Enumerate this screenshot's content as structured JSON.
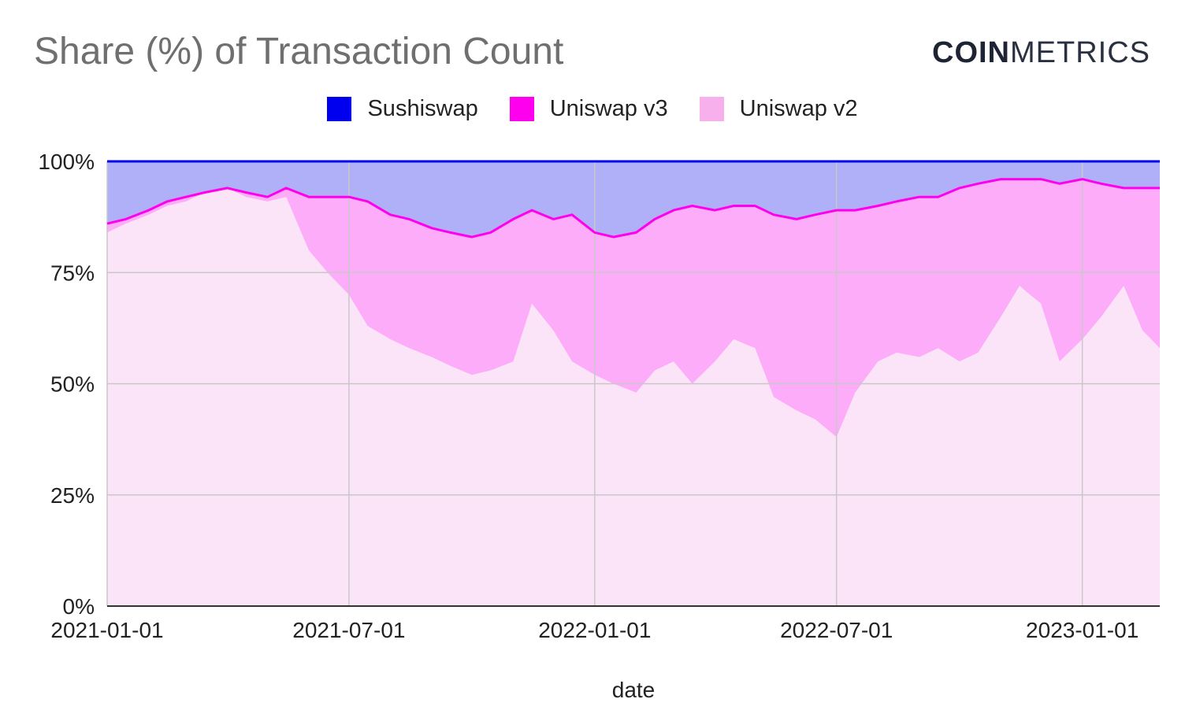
{
  "header": {
    "title": "Share (%) of Transaction Count",
    "logo_bold": "COIN",
    "logo_light": "METRICS"
  },
  "chart_data": {
    "type": "area",
    "stacked": true,
    "percent": true,
    "title": "Share (%) of Transaction Count",
    "xlabel": "date",
    "ylabel": "",
    "ylim": [
      0,
      100
    ],
    "xlim": [
      "2021-01-01",
      "2023-02-28"
    ],
    "x_ticks": [
      "2021-01-01",
      "2021-07-01",
      "2022-01-01",
      "2022-07-01",
      "2023-01-01"
    ],
    "y_ticks": [
      "0%",
      "25%",
      "50%",
      "75%",
      "100%"
    ],
    "grid": true,
    "legend_position": "top-center",
    "x": [
      "2021-01-01",
      "2021-01-15",
      "2021-02-01",
      "2021-02-15",
      "2021-03-01",
      "2021-03-15",
      "2021-04-01",
      "2021-04-15",
      "2021-05-01",
      "2021-05-15",
      "2021-06-01",
      "2021-06-15",
      "2021-07-01",
      "2021-07-15",
      "2021-08-01",
      "2021-08-15",
      "2021-09-01",
      "2021-09-15",
      "2021-10-01",
      "2021-10-15",
      "2021-11-01",
      "2021-11-15",
      "2021-12-01",
      "2021-12-15",
      "2022-01-01",
      "2022-01-15",
      "2022-02-01",
      "2022-02-15",
      "2022-03-01",
      "2022-03-15",
      "2022-04-01",
      "2022-04-15",
      "2022-05-01",
      "2022-05-15",
      "2022-06-01",
      "2022-06-15",
      "2022-07-01",
      "2022-07-15",
      "2022-08-01",
      "2022-08-15",
      "2022-09-01",
      "2022-09-15",
      "2022-10-01",
      "2022-10-15",
      "2022-11-01",
      "2022-11-15",
      "2022-12-01",
      "2022-12-15",
      "2023-01-01",
      "2023-01-15",
      "2023-02-01",
      "2023-02-15",
      "2023-02-28"
    ],
    "series": [
      {
        "name": "Uniswap v2",
        "color": "#fce4f8",
        "values": [
          84,
          86,
          88,
          90,
          91,
          93,
          94,
          92,
          91,
          92,
          80,
          75,
          70,
          63,
          60,
          58,
          56,
          54,
          52,
          53,
          55,
          68,
          62,
          55,
          52,
          50,
          48,
          53,
          55,
          50,
          55,
          60,
          58,
          47,
          44,
          42,
          38,
          48,
          55,
          57,
          56,
          58,
          55,
          57,
          65,
          72,
          68,
          55,
          60,
          65,
          72,
          62,
          58
        ]
      },
      {
        "name": "Uniswap v3",
        "color": "#fcacf8",
        "values": [
          2,
          1,
          1,
          1,
          1,
          0,
          0,
          1,
          1,
          2,
          12,
          17,
          22,
          28,
          28,
          29,
          29,
          30,
          31,
          31,
          32,
          21,
          25,
          33,
          32,
          33,
          36,
          34,
          34,
          40,
          34,
          30,
          32,
          41,
          43,
          46,
          51,
          41,
          35,
          34,
          36,
          34,
          39,
          38,
          31,
          24,
          28,
          40,
          36,
          30,
          22,
          32,
          36
        ]
      },
      {
        "name": "Sushiswap",
        "color": "#b0b0f8",
        "values": [
          14,
          13,
          11,
          9,
          8,
          7,
          6,
          7,
          8,
          6,
          8,
          8,
          8,
          9,
          12,
          13,
          15,
          16,
          17,
          16,
          13,
          11,
          13,
          12,
          16,
          17,
          16,
          13,
          11,
          10,
          11,
          10,
          10,
          12,
          13,
          12,
          11,
          11,
          10,
          9,
          8,
          8,
          6,
          5,
          4,
          4,
          4,
          5,
          4,
          5,
          6,
          6,
          6
        ]
      }
    ],
    "line_colors": {
      "Uniswap v3": "#ff00ee",
      "Sushiswap": "#0000ee"
    }
  },
  "legend": [
    {
      "label": "Sushiswap",
      "color": "#0000ee"
    },
    {
      "label": "Uniswap v3",
      "color": "#ff00ee"
    },
    {
      "label": "Uniswap v2",
      "color": "#f8b0ec"
    }
  ]
}
